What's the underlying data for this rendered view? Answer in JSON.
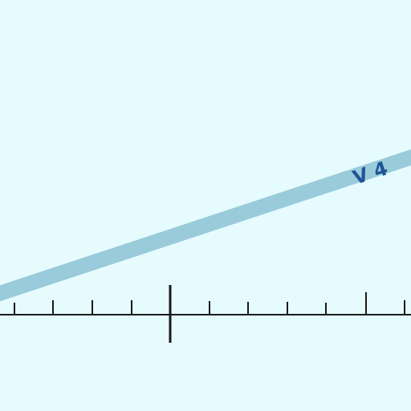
{
  "map": {
    "background": "#e6fbfe",
    "route": {
      "label": "V 4",
      "color": "#99cbda",
      "label_color": "#1f5597"
    },
    "scale_bar": {
      "color": "#1a1a1a",
      "minor_ticks": 9,
      "major_ticks": 1
    }
  }
}
